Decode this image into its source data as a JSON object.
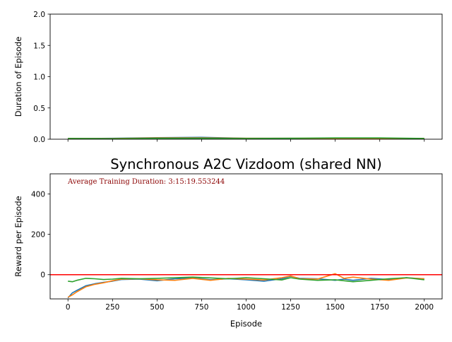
{
  "chart_data": [
    {
      "type": "line",
      "title": "",
      "xlabel": "",
      "ylabel": "Duration of Episode",
      "xlim": [
        -100,
        2100
      ],
      "ylim": [
        0,
        2.0
      ],
      "xticks": [
        0,
        250,
        500,
        750,
        1000,
        1250,
        1500,
        1750,
        2000
      ],
      "xtick_labels_visible": false,
      "yticks": [
        0.0,
        0.5,
        1.0,
        1.5,
        2.0
      ],
      "ytick_labels": [
        "0.0",
        "0.5",
        "1.0",
        "1.5",
        "2.0"
      ],
      "grid": false,
      "x": [
        0,
        250,
        500,
        750,
        1000,
        1250,
        1500,
        1750,
        2000
      ],
      "series": [
        {
          "color": "#1f77b4",
          "values": [
            0.01,
            0.015,
            0.025,
            0.03,
            0.015,
            0.015,
            0.01,
            0.01,
            0.01
          ]
        },
        {
          "color": "#ff7f0e",
          "values": [
            0.01,
            0.01,
            0.02,
            0.02,
            0.015,
            0.015,
            0.015,
            0.015,
            0.01
          ]
        },
        {
          "color": "#2ca02c",
          "values": [
            0.012,
            0.008,
            0.015,
            0.015,
            0.012,
            0.015,
            0.02,
            0.02,
            0.012
          ]
        }
      ]
    },
    {
      "type": "line",
      "title": "Synchronous A2C Vizdoom (shared NN)",
      "xlabel": "Episode",
      "ylabel": "Reward per Episode",
      "annotation": "Average Training Duration: 3:15:19.553244",
      "annotation_color": "#8b0000",
      "xlim": [
        -100,
        2100
      ],
      "ylim": [
        -120,
        500
      ],
      "xticks": [
        0,
        250,
        500,
        750,
        1000,
        1250,
        1500,
        1750,
        2000
      ],
      "xtick_labels": [
        "0",
        "250",
        "500",
        "750",
        "1000",
        "1250",
        "1500",
        "1750",
        "2000"
      ],
      "yticks": [
        0,
        200,
        400
      ],
      "ytick_labels": [
        "0",
        "200",
        "400"
      ],
      "grid": false,
      "hline": {
        "y": 0,
        "color": "#ff0000"
      },
      "x": [
        0,
        25,
        50,
        100,
        150,
        200,
        250,
        300,
        400,
        500,
        600,
        700,
        800,
        900,
        1000,
        1100,
        1200,
        1250,
        1300,
        1400,
        1500,
        1550,
        1600,
        1700,
        1800,
        1900,
        2000
      ],
      "series": [
        {
          "color": "#1f77b4",
          "values": [
            -115,
            -90,
            -78,
            -55,
            -45,
            -38,
            -32,
            -24,
            -22,
            -30,
            -20,
            -16,
            -25,
            -20,
            -25,
            -32,
            -20,
            -8,
            -18,
            -20,
            -28,
            -22,
            -28,
            -18,
            -24,
            -15,
            -20
          ]
        },
        {
          "color": "#ff7f0e",
          "values": [
            -112,
            -100,
            -85,
            -60,
            -48,
            -40,
            -30,
            -22,
            -20,
            -25,
            -28,
            -18,
            -28,
            -18,
            -22,
            -26,
            -15,
            -6,
            -20,
            -22,
            5,
            -18,
            -12,
            -22,
            -28,
            -16,
            -20
          ]
        },
        {
          "color": "#2ca02c",
          "values": [
            -32,
            -35,
            -28,
            -18,
            -20,
            -24,
            -22,
            -18,
            -20,
            -18,
            -15,
            -12,
            -16,
            -20,
            -15,
            -20,
            -26,
            -15,
            -22,
            -28,
            -25,
            -30,
            -35,
            -28,
            -20,
            -15,
            -25
          ]
        }
      ]
    }
  ]
}
